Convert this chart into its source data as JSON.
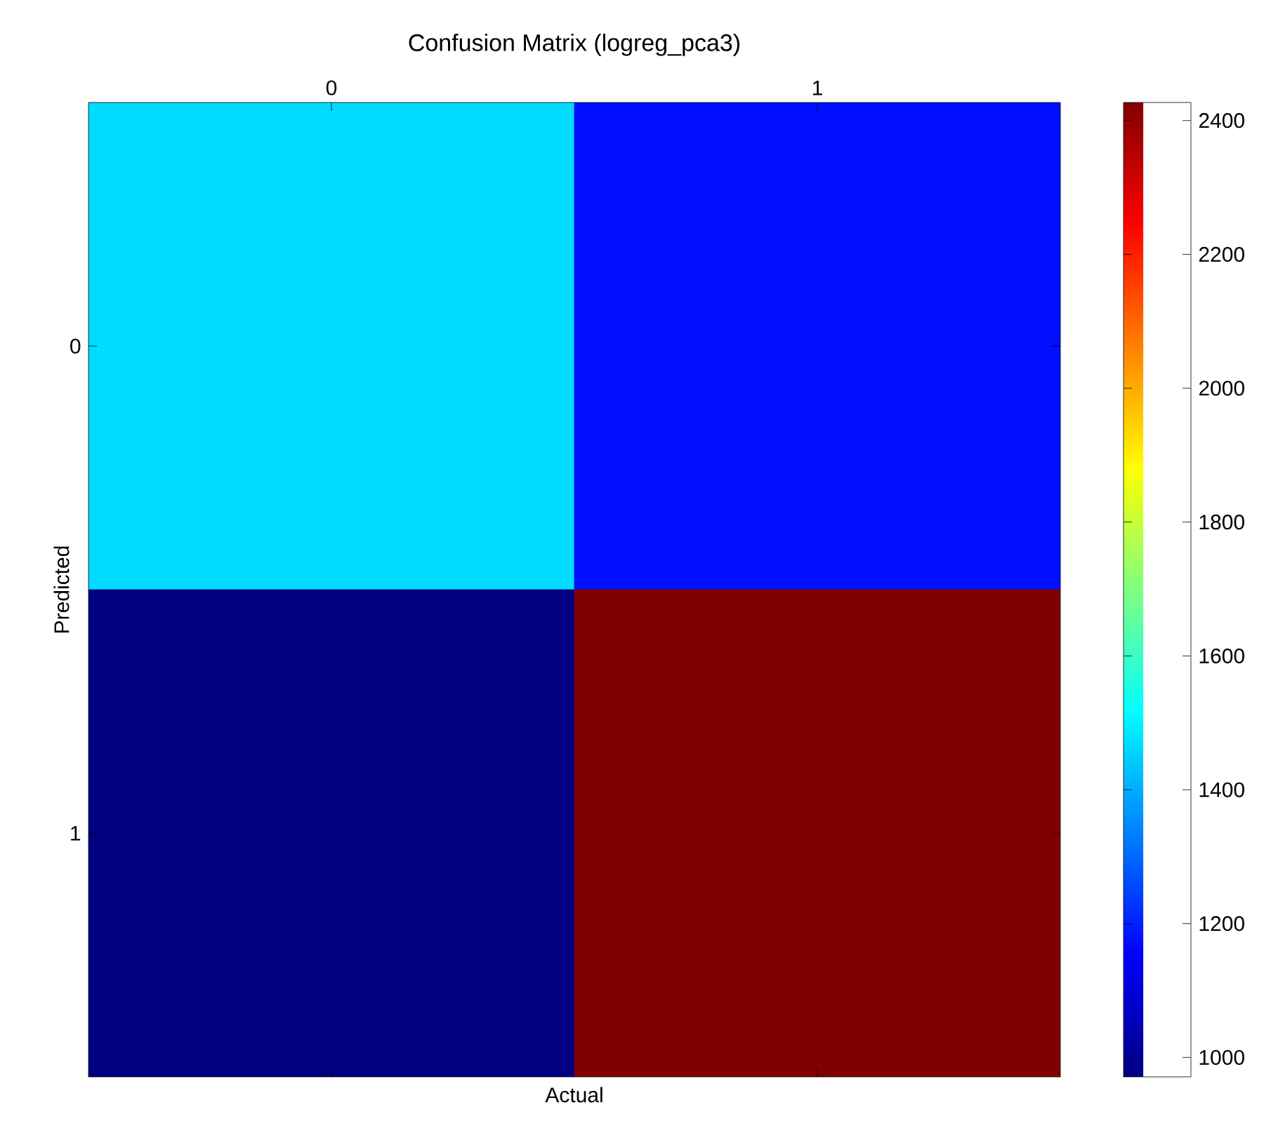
{
  "chart_data": {
    "type": "heatmap",
    "title": "Confusion Matrix (logreg_pca3)",
    "xlabel": "Actual",
    "ylabel": "Predicted",
    "categories": [
      "0",
      "1"
    ],
    "y_categories": [
      "0",
      "1"
    ],
    "cells": [
      [
        1466,
        1175
      ],
      [
        971,
        2427
      ]
    ],
    "clim": [
      971,
      2427
    ],
    "cticks": [
      1000,
      1200,
      1400,
      1600,
      1800,
      2000,
      2200,
      2400
    ]
  }
}
